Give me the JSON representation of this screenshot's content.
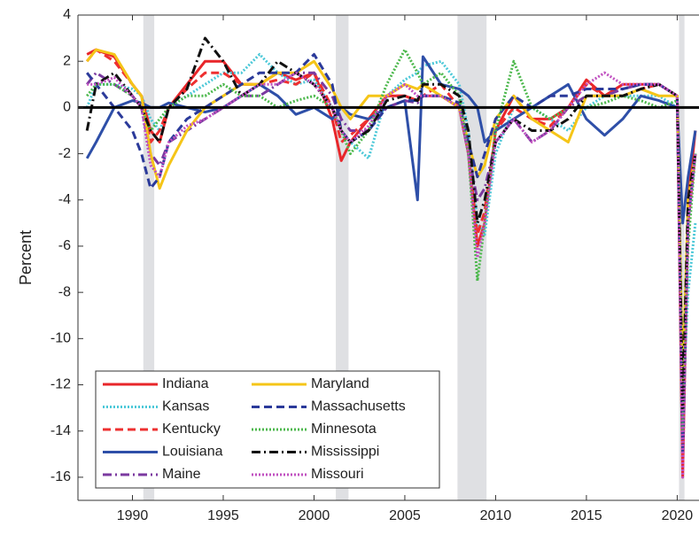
{
  "chart_data": {
    "type": "line",
    "y_label": "Percent",
    "xlim": [
      1987,
      2021.2
    ],
    "ylim": [
      -17,
      4
    ],
    "xticks": [
      1990,
      1995,
      2000,
      2005,
      2010,
      2015,
      2020
    ],
    "yticks": [
      4,
      2,
      0,
      -2,
      -4,
      -6,
      -8,
      -10,
      -12,
      -14,
      -16
    ],
    "zero_line": true,
    "shaded_periods": [
      [
        1990.6,
        1991.2
      ],
      [
        2001.2,
        2001.9
      ],
      [
        2007.9,
        2009.5
      ],
      [
        2020.1,
        2020.4
      ]
    ],
    "legend": "lower left",
    "x": [
      1987.5,
      1988,
      1989,
      1990,
      1990.5,
      1991,
      1991.5,
      1992,
      1993,
      1994,
      1995,
      1996,
      1997,
      1998,
      1999,
      2000,
      2001,
      2001.5,
      2002,
      2003,
      2004,
      2005,
      2005.7,
      2006,
      2007,
      2008,
      2008.5,
      2009,
      2009.4,
      2010,
      2011,
      2012,
      2013,
      2014,
      2015,
      2016,
      2017,
      2018,
      2019,
      2020,
      2020.3,
      2020.6,
      2021
    ],
    "series": [
      {
        "name": "Indiana",
        "color": "#e8262a",
        "style": "solid",
        "values": [
          2.3,
          2.5,
          2.2,
          1,
          0.5,
          -1,
          -1.5,
          0,
          1,
          2,
          2,
          1,
          1,
          1.5,
          1.2,
          1.5,
          -0.5,
          -2.3,
          -1.5,
          -0.5,
          0.5,
          0.5,
          0.3,
          0.5,
          0.5,
          0,
          -2,
          -6,
          -5,
          -1,
          0.5,
          -0.5,
          -0.5,
          0,
          1.2,
          0.5,
          1,
          1,
          1,
          0.5,
          -16,
          -4,
          -1
        ]
      },
      {
        "name": "Kansas",
        "color": "#4cc8d8",
        "style": "dotted",
        "values": [
          0,
          1,
          1,
          0.8,
          0.5,
          -0.5,
          -1,
          0,
          0.5,
          1,
          1.5,
          1.5,
          2.3,
          1.5,
          1,
          1.2,
          0,
          -1,
          -1.5,
          -2.2,
          0.5,
          1.2,
          1.5,
          1.8,
          2,
          1,
          -1,
          -5,
          -5.5,
          -2,
          0,
          0,
          -0.5,
          -1,
          0,
          0.5,
          0.5,
          0.5,
          0.5,
          0,
          -13,
          -8,
          -5
        ]
      },
      {
        "name": "Kentucky",
        "color": "#ee3030",
        "style": "dashed",
        "values": [
          2,
          2.5,
          2,
          1,
          0.5,
          -1.5,
          -1,
          0,
          0.8,
          1.5,
          1.5,
          1,
          1,
          1.2,
          1,
          1.5,
          0,
          -1.5,
          -1.2,
          -0.5,
          0.5,
          0.5,
          0.3,
          0.5,
          1,
          0,
          -2,
          -5.5,
          -4.5,
          -1,
          0,
          -0.5,
          -0.8,
          0,
          1,
          0.5,
          0.5,
          0.8,
          1,
          0.5,
          -15,
          -5,
          -2
        ]
      },
      {
        "name": "Louisiana",
        "color": "#2e4fa8",
        "style": "solid",
        "values": [
          -2.2,
          -1.5,
          0,
          0.3,
          0.2,
          0,
          0,
          0.2,
          0,
          -0.2,
          0,
          0.5,
          1,
          0.5,
          -0.3,
          0,
          -0.5,
          0,
          -0.3,
          -0.5,
          0,
          0.3,
          -4,
          2.2,
          1,
          0.8,
          0.5,
          0,
          -1.5,
          -1,
          -0.5,
          0,
          0.5,
          1,
          -0.5,
          -1.2,
          -0.5,
          0.5,
          0.3,
          0,
          -5,
          -3,
          -1
        ]
      },
      {
        "name": "Maine",
        "color": "#7b3aa0",
        "style": "dashdot",
        "values": [
          1,
          1.5,
          1,
          0.5,
          0,
          -2,
          -2.5,
          -1.5,
          -1,
          -0.5,
          0,
          0.5,
          0.5,
          1,
          1.5,
          1.5,
          0.5,
          -0.5,
          -1,
          -1,
          0,
          0.3,
          0.2,
          0.5,
          0.5,
          0,
          -2,
          -4,
          -3.5,
          -1.5,
          -0.5,
          -1.5,
          -1,
          0,
          0.5,
          0.5,
          0.8,
          1,
          1,
          0.5,
          -14,
          -4,
          -2
        ]
      },
      {
        "name": "Maryland",
        "color": "#f5c518",
        "style": "solid",
        "values": [
          2,
          2.5,
          2.3,
          1,
          0.5,
          -2,
          -3.5,
          -2.5,
          -1,
          0,
          0.5,
          1,
          1,
          1.5,
          1.5,
          2,
          0.8,
          0,
          -0.5,
          0.5,
          0.5,
          1,
          0.8,
          1,
          0.5,
          0,
          -1.5,
          -3,
          -2.5,
          -0.5,
          0.5,
          -0.5,
          -1,
          -1.5,
          0.5,
          0.5,
          0.5,
          0.8,
          0.5,
          0.5,
          -12,
          -4,
          -2
        ]
      },
      {
        "name": "Massachusetts",
        "color": "#2b3a9a",
        "style": "dashed",
        "values": [
          1.5,
          1,
          0,
          -1,
          -2,
          -3.5,
          -3,
          -1.5,
          -0.5,
          0,
          0.5,
          1,
          1.5,
          1.5,
          1.5,
          2.3,
          1,
          -1,
          -1.5,
          -1,
          0,
          0.3,
          0.3,
          0.5,
          0.5,
          0.2,
          -1.5,
          -3,
          -2,
          -0.5,
          0.5,
          0,
          0.5,
          0.5,
          0.8,
          0.8,
          0.8,
          1,
          1,
          0.5,
          -15,
          -5,
          -2
        ]
      },
      {
        "name": "Minnesota",
        "color": "#4cb84c",
        "style": "dotted",
        "values": [
          0.5,
          1,
          1,
          0.5,
          0,
          -1,
          -0.5,
          0,
          0.5,
          0.5,
          1,
          0.5,
          0.5,
          0,
          0.3,
          0.5,
          0,
          -1,
          -2,
          -1,
          1,
          2.5,
          1.5,
          1,
          1.5,
          0.5,
          -2,
          -7.5,
          -5,
          -1,
          2,
          0,
          -0.5,
          0,
          0,
          0.2,
          0.5,
          0.3,
          0,
          0.3,
          -14,
          -6,
          -2
        ]
      },
      {
        "name": "Mississippi",
        "color": "#111111",
        "style": "dashdot",
        "values": [
          -1,
          1,
          1.5,
          0.5,
          0,
          -1,
          -1.5,
          0,
          0.8,
          3,
          2,
          0.5,
          1,
          2,
          1.5,
          1,
          0,
          -1,
          -1.5,
          -1,
          0.3,
          0.5,
          0.3,
          1,
          1,
          0.5,
          -1,
          -5,
          -4,
          -1.5,
          -0.5,
          -1,
          -1,
          -0.5,
          0.5,
          0.5,
          0.5,
          0.8,
          1,
          0.5,
          -13,
          -4,
          -2
        ]
      },
      {
        "name": "Missouri",
        "color": "#c050c0",
        "style": "dotted",
        "values": [
          1,
          1,
          1.3,
          0.5,
          0,
          -2.5,
          -3,
          -1.5,
          -0.8,
          -0.5,
          0,
          0.5,
          1,
          1,
          1.5,
          1,
          0,
          -1,
          -1.5,
          -0.8,
          0.5,
          1,
          0.5,
          0.5,
          0.5,
          0,
          -2,
          -6.5,
          -5,
          -1.5,
          -0.5,
          -1.5,
          -1,
          0,
          1,
          1.5,
          1,
          1,
          1,
          0.5,
          -16,
          -5,
          -2
        ]
      }
    ]
  }
}
